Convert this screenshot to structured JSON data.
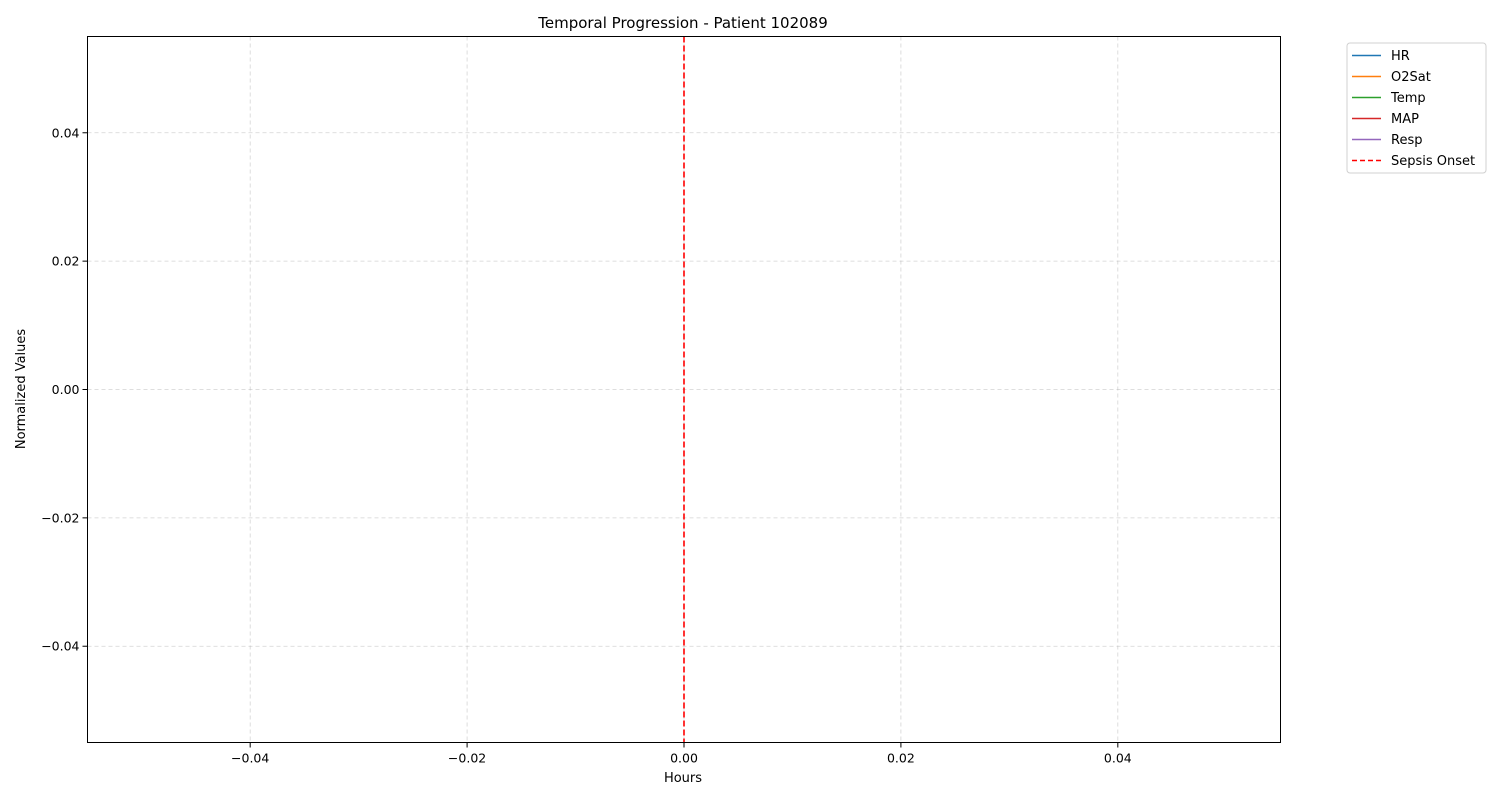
{
  "chart_data": {
    "type": "line",
    "title": "Temporal Progression - Patient 102089",
    "xlabel": "Hours",
    "ylabel": "Normalized Values",
    "xlim": [
      -0.055,
      0.055
    ],
    "ylim": [
      -0.055,
      0.055
    ],
    "xticks": [
      -0.04,
      -0.02,
      0.0,
      0.02,
      0.04
    ],
    "yticks": [
      -0.04,
      -0.02,
      0.0,
      0.02,
      0.04
    ],
    "xtick_labels": [
      "−0.04",
      "−0.02",
      "0.00",
      "0.02",
      "0.04"
    ],
    "ytick_labels": [
      "−0.04",
      "−0.02",
      "0.00",
      "0.02",
      "0.04"
    ],
    "grid": true,
    "legend_placement": "outside-top-right",
    "series": [
      {
        "name": "HR",
        "color": "#1f77b4",
        "style": "solid",
        "x": [],
        "y": []
      },
      {
        "name": "O2Sat",
        "color": "#ff7f0e",
        "style": "solid",
        "x": [],
        "y": []
      },
      {
        "name": "Temp",
        "color": "#2ca02c",
        "style": "solid",
        "x": [],
        "y": []
      },
      {
        "name": "MAP",
        "color": "#d62728",
        "style": "solid",
        "x": [],
        "y": []
      },
      {
        "name": "Resp",
        "color": "#9467bd",
        "style": "solid",
        "x": [],
        "y": []
      }
    ],
    "annotations": [
      {
        "name": "Sepsis Onset",
        "type": "vline",
        "x": 0.0,
        "color": "#ff0000",
        "style": "dashed"
      }
    ]
  }
}
